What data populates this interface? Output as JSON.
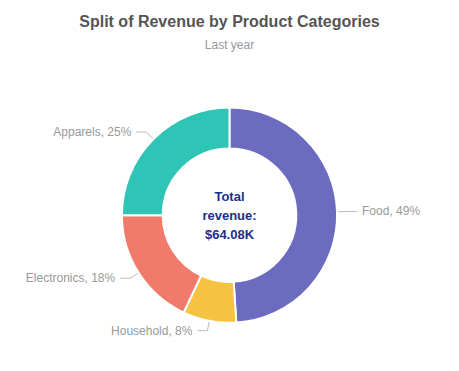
{
  "chart_data": {
    "type": "donut",
    "title": "Split of Revenue by Product Categories",
    "subtitle": "Last year",
    "center_text": "Total\nrevenue:\n$64.08K",
    "categories": [
      "Food",
      "Household",
      "Electronics",
      "Apparels"
    ],
    "values": [
      49,
      8,
      18,
      25
    ],
    "value_labels": [
      "Food, 49%",
      "Household, 8%",
      "Electronics, 18%",
      "Apparels, 25%"
    ],
    "colors": [
      "#6b6bbf",
      "#f5c242",
      "#f07b6b",
      "#2ec4b6"
    ],
    "data_labels": true
  }
}
